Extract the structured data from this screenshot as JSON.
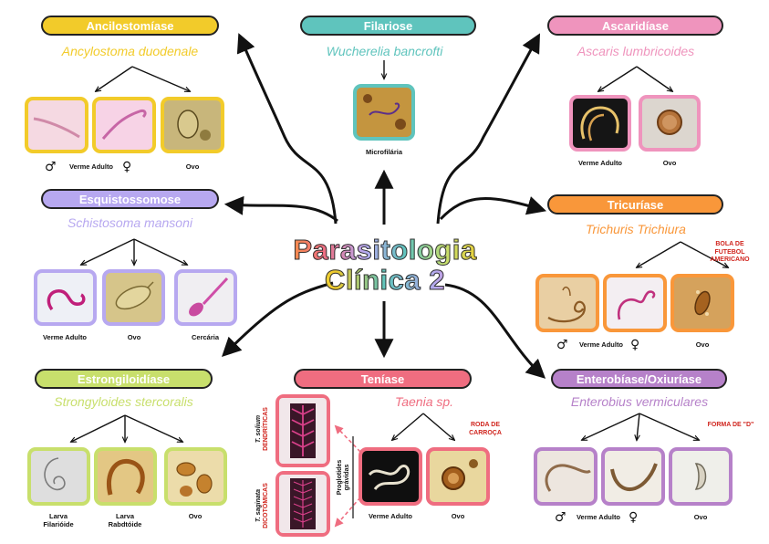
{
  "title": {
    "line1": "Parasitologia",
    "line2": "Clínica 2"
  },
  "colors": {
    "ancilo": "#f2cb2a",
    "filari": "#5fc4bd",
    "ascari": "#ef94bd",
    "esquis": "#b7a8f0",
    "tricur": "#f9973a",
    "estron": "#c8df6c",
    "tenias": "#ef6d80",
    "entero": "#b681c9"
  },
  "nodes": {
    "ancilostomiase": {
      "name": "Ancilostomíase",
      "species": "Ancylostoma duodenale",
      "labels": {
        "male": "♂",
        "adult": "Verme Adulto",
        "female": "♀",
        "egg": "Ovo"
      },
      "icons": [
        "male-symbol-icon",
        "female-symbol-icon"
      ]
    },
    "filariose": {
      "name": "Filariose",
      "species": "Wucherelia bancrofti",
      "labels": {
        "microfilaria": "Microfilária"
      }
    },
    "ascaridiase": {
      "name": "Ascaridíase",
      "species": "Ascaris lumbricoides",
      "labels": {
        "adult": "Verme Adulto",
        "egg": "Ovo"
      }
    },
    "esquistossomose": {
      "name": "Esquistossomose",
      "species": "Schistosoma mansoni",
      "labels": {
        "adult": "Verme Adulto",
        "egg": "Ovo",
        "cercaria": "Cercária"
      }
    },
    "tricuriase": {
      "name": "Tricuríase",
      "species": "Trichuris Trichiura",
      "labels": {
        "male": "♂",
        "adult": "Verme Adulto",
        "female": "♀",
        "egg": "Ovo"
      },
      "note": "BOLA DE\nFUTEBOL\nAMERICANO"
    },
    "estrongiloidiase": {
      "name": "Estrongiloidíase",
      "species": "Strongyloides stercoralis",
      "labels": {
        "filariform": "Larva\nFilarióide",
        "rhabditiform": "Larva\nRabdtóide",
        "egg": "Ovo"
      }
    },
    "teniase": {
      "name": "Teníase",
      "species": "Taenia sp.",
      "labels": {
        "adult": "Verme Adulto",
        "egg": "Ovo",
        "gravid": "Proglotides\ngrávidas",
        "solium_species": "T. solium",
        "solium_trait": "DENDRÍTICAS",
        "saginata_species": "T. saginata",
        "saginata_trait": "DICOTÔMICAS"
      },
      "note": "RODA DE\nCARROÇA"
    },
    "enterobiase": {
      "name": "Enterobíase/Oxiuríase",
      "species": "Enterobius vermiculares",
      "labels": {
        "male": "♂",
        "adult": "Verme Adulto",
        "female": "♀",
        "egg": "Ovo"
      },
      "note": "FORMA DE \"D\""
    }
  }
}
